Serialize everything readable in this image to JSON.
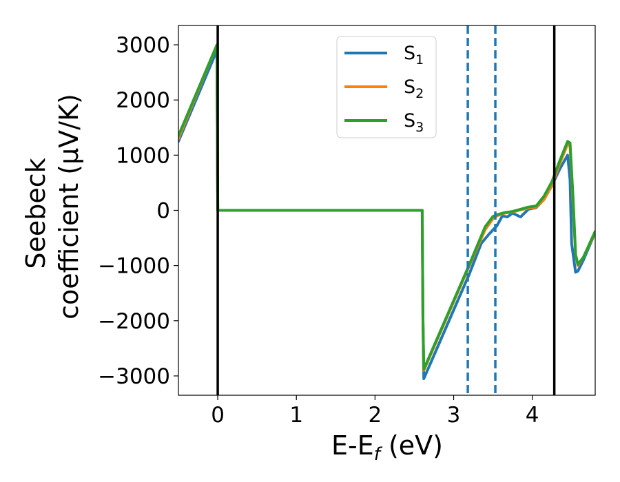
{
  "chart_data": {
    "type": "line",
    "xlabel": "E-E",
    "xlabel_sub": "f",
    "xlabel_unit": " (eV)",
    "ylabel_line1": "Seebeck",
    "ylabel_line2": "coefficient  (μV/K)",
    "xlim": [
      -0.5,
      4.8
    ],
    "ylim": [
      -3350,
      3350
    ],
    "xticks": [
      0,
      1,
      2,
      3,
      4
    ],
    "xtick_labels": [
      "0",
      "1",
      "2",
      "3",
      "4"
    ],
    "yticks": [
      3000,
      2000,
      1000,
      0,
      -1000,
      -2000,
      -3000
    ],
    "ytick_labels": [
      "3000",
      "2000",
      "1000",
      "0",
      "−1000",
      "−2000",
      "−3000"
    ],
    "grid": false,
    "legend_position": "top-center",
    "vlines_solid": [
      0,
      4.28
    ],
    "vlines_dashed": [
      3.18,
      3.53
    ],
    "series": [
      {
        "name": "S",
        "sub": "1",
        "color": "#1f77b4",
        "x": [
          -0.5,
          -0.01,
          0.0,
          2.6,
          2.61,
          2.62,
          3.2,
          3.35,
          3.45,
          3.55,
          3.62,
          3.68,
          3.75,
          3.85,
          3.95,
          4.05,
          4.15,
          4.25,
          4.35,
          4.45,
          4.48,
          4.5,
          4.55,
          4.58,
          4.65,
          4.8
        ],
        "y": [
          1250,
          2900,
          0,
          0,
          -2000,
          -3050,
          -1150,
          -600,
          -430,
          -280,
          -100,
          -120,
          -50,
          -120,
          20,
          50,
          200,
          450,
          750,
          1000,
          550,
          -600,
          -1120,
          -1100,
          -900,
          -400
        ]
      },
      {
        "name": "S",
        "sub": "2",
        "color": "#ff7f0e",
        "x": [
          -0.5,
          -0.01,
          0.0,
          2.6,
          2.61,
          2.62,
          3.2,
          3.4,
          3.5,
          3.55,
          3.65,
          3.75,
          3.85,
          3.95,
          4.05,
          4.15,
          4.25,
          4.35,
          4.45,
          4.48,
          4.52,
          4.55,
          4.58,
          4.65,
          4.8
        ],
        "y": [
          1300,
          3000,
          0,
          0,
          -2000,
          -2900,
          -1000,
          -350,
          -150,
          -100,
          -50,
          -30,
          10,
          40,
          60,
          200,
          460,
          850,
          1200,
          1170,
          100,
          -800,
          -1000,
          -850,
          -400
        ]
      },
      {
        "name": "S",
        "sub": "3",
        "color": "#2ca02c",
        "x": [
          -0.5,
          -0.01,
          0.0,
          2.6,
          2.61,
          2.62,
          3.2,
          3.4,
          3.5,
          3.55,
          3.65,
          3.75,
          3.85,
          3.95,
          4.05,
          4.15,
          4.25,
          4.35,
          4.45,
          4.48,
          4.52,
          4.55,
          4.58,
          4.65,
          4.8
        ],
        "y": [
          1350,
          3000,
          0,
          0,
          -2000,
          -2880,
          -980,
          -300,
          -110,
          -80,
          -40,
          -20,
          20,
          60,
          80,
          260,
          520,
          900,
          1250,
          1220,
          200,
          -800,
          -980,
          -850,
          -380
        ]
      }
    ]
  }
}
